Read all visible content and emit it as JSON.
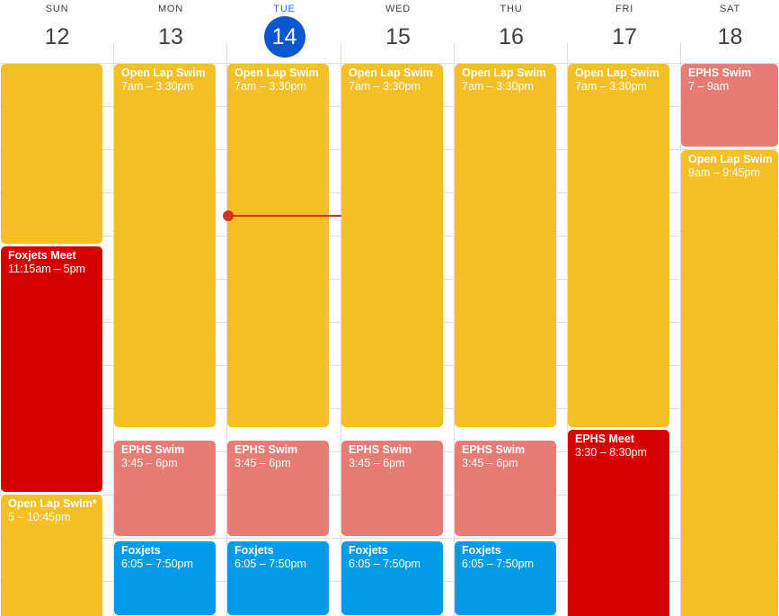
{
  "days": [
    {
      "name": "SUN",
      "number": "12"
    },
    {
      "name": "MON",
      "number": "13"
    },
    {
      "name": "TUE",
      "number": "14",
      "today": true
    },
    {
      "name": "WED",
      "number": "15"
    },
    {
      "name": "THU",
      "number": "16"
    },
    {
      "name": "FRI",
      "number": "17"
    },
    {
      "name": "SAT",
      "number": "18"
    }
  ],
  "events": {
    "sun_lap_swim_top": {
      "title": "",
      "time": ""
    },
    "sun_foxjets_meet": {
      "title": "Foxjets Meet",
      "time": "11:15am – 5pm"
    },
    "sun_open_lap_swim": {
      "title": "Open Lap Swim*",
      "time": "5 – 10:45pm"
    },
    "mon_open_lap_swim": {
      "title": "Open Lap Swim",
      "time": "7am – 3:30pm"
    },
    "mon_ephs_swim": {
      "title": "EPHS Swim",
      "time": "3:45 – 6pm"
    },
    "mon_foxjets": {
      "title": "Foxjets",
      "time": "6:05 – 7:50pm"
    },
    "tue_open_lap_swim": {
      "title": "Open Lap Swim",
      "time": "7am – 3:30pm"
    },
    "tue_ephs_swim": {
      "title": "EPHS Swim",
      "time": "3:45 – 6pm"
    },
    "tue_foxjets": {
      "title": "Foxjets",
      "time": "6:05 – 7:50pm"
    },
    "wed_open_lap_swim": {
      "title": "Open Lap Swim",
      "time": "7am – 3:30pm"
    },
    "wed_ephs_swim": {
      "title": "EPHS Swim",
      "time": "3:45 – 6pm"
    },
    "wed_foxjets": {
      "title": "Foxjets",
      "time": "6:05 – 7:50pm"
    },
    "thu_open_lap_swim": {
      "title": "Open Lap Swim",
      "time": "7am – 3:30pm"
    },
    "thu_ephs_swim": {
      "title": "EPHS Swim",
      "time": "3:45 – 6pm"
    },
    "thu_foxjets": {
      "title": "Foxjets",
      "time": "6:05 – 7:50pm"
    },
    "fri_open_lap_swim": {
      "title": "Open Lap Swim",
      "time": "7am – 3:30pm"
    },
    "fri_ephs_meet": {
      "title": "EPHS Meet",
      "time": "3:30 – 8:30pm"
    },
    "sat_ephs_swim": {
      "title": "EPHS Swim",
      "time": "7 – 9am"
    },
    "sat_open_lap_swim": {
      "title": "Open Lap Swim",
      "time": "9am – 9:45pm"
    }
  },
  "colors": {
    "open_lap_swim": "#f6bf26",
    "ephs_swim": "#e67c73",
    "meet": "#d50000",
    "foxjets": "#039be5",
    "today_accent": "#0b57d0",
    "current_time": "#d93025"
  }
}
